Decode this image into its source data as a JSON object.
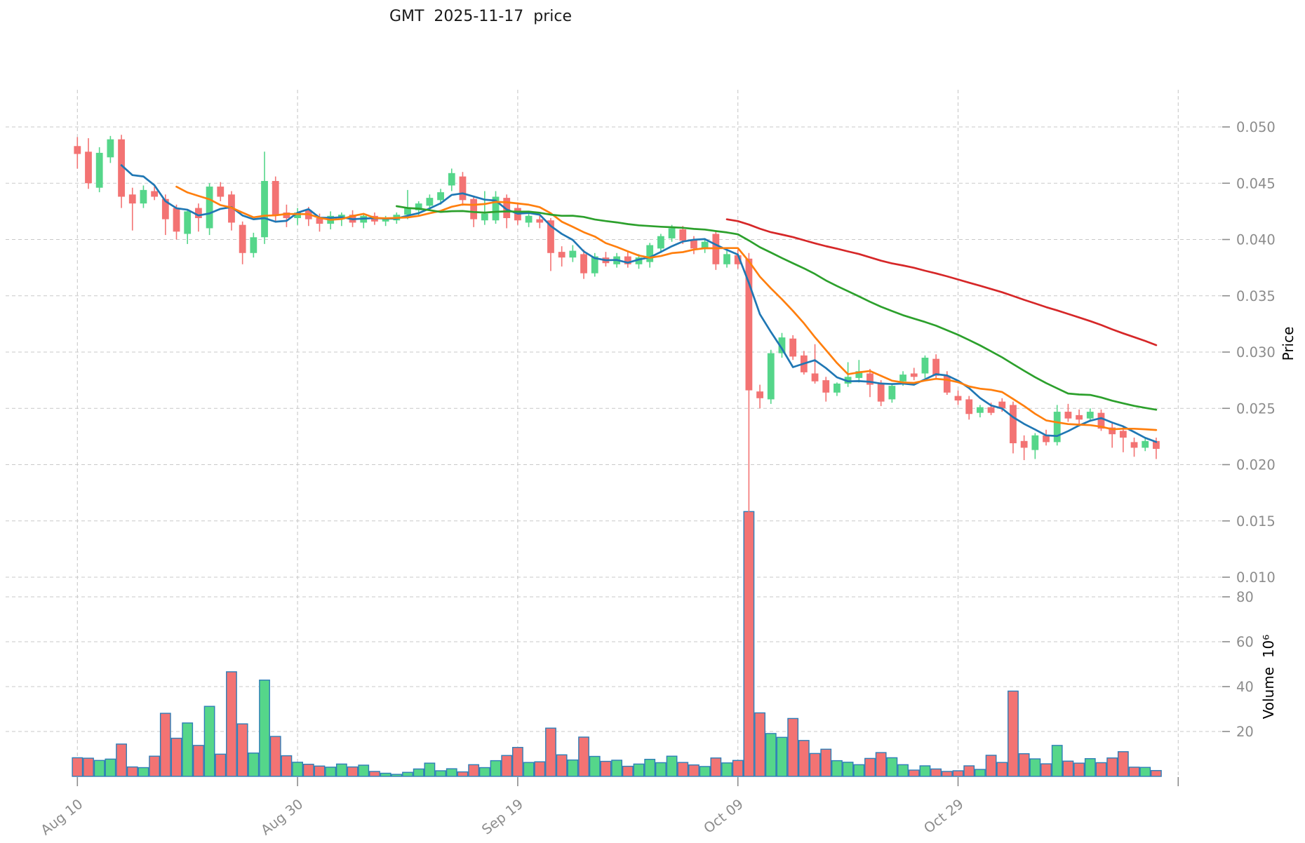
{
  "title": "GMT  2025-11-17  price",
  "axes": {
    "price_label": "Price",
    "volume_label": "Volume  10⁶",
    "price_ticks": [
      "0.050",
      "0.045",
      "0.040",
      "0.035",
      "0.030",
      "0.025",
      "0.020",
      "0.015",
      "0.010"
    ],
    "volume_ticks": [
      "80",
      "60",
      "40",
      "20"
    ],
    "x_ticks": [
      {
        "label": "Aug 10",
        "day": 0
      },
      {
        "label": "Aug 30",
        "day": 20
      },
      {
        "label": "Sep 19",
        "day": 40
      },
      {
        "label": "Oct 09",
        "day": 60
      },
      {
        "label": "Oct 29",
        "day": 80
      }
    ],
    "x_grid_extra_day": 100
  },
  "style": {
    "up_color": "#55d68a",
    "down_color": "#f37373",
    "volume_edge_color": "#2e7eb8",
    "grid_color": "#c9c9c9",
    "tick_text_color": "#8c8c8c",
    "axis_label_color": "#000000",
    "title_color": "#1a1a1a",
    "ma_colors": [
      "#1f77b4",
      "#ff7f0e",
      "#2ca02c",
      "#d62728"
    ]
  },
  "chart_data": {
    "type": "candlestick",
    "symbol": "GMT",
    "as_of_date": "2025-11-17",
    "title": "GMT  2025-11-17  price",
    "ylabel": "Price",
    "ylabel_volume": "Volume 10^6",
    "price_ylim": [
      0.0085,
      0.0515
    ],
    "volume_ylim": [
      0,
      130
    ],
    "grid": true,
    "legend_position": "none",
    "moving_averages": [
      {
        "period": 5,
        "color": "#1f77b4"
      },
      {
        "period": 10,
        "color": "#ff7f0e"
      },
      {
        "period": 30,
        "color": "#2ca02c"
      },
      {
        "period": 60,
        "color": "#d62728"
      }
    ],
    "dates": [
      "2025-08-10",
      "2025-08-11",
      "2025-08-12",
      "2025-08-13",
      "2025-08-14",
      "2025-08-15",
      "2025-08-16",
      "2025-08-17",
      "2025-08-18",
      "2025-08-19",
      "2025-08-20",
      "2025-08-21",
      "2025-08-22",
      "2025-08-23",
      "2025-08-24",
      "2025-08-25",
      "2025-08-26",
      "2025-08-27",
      "2025-08-28",
      "2025-08-29",
      "2025-08-30",
      "2025-08-31",
      "2025-09-01",
      "2025-09-02",
      "2025-09-03",
      "2025-09-04",
      "2025-09-05",
      "2025-09-06",
      "2025-09-07",
      "2025-09-08",
      "2025-09-09",
      "2025-09-10",
      "2025-09-11",
      "2025-09-12",
      "2025-09-13",
      "2025-09-14",
      "2025-09-15",
      "2025-09-16",
      "2025-09-17",
      "2025-09-18",
      "2025-09-19",
      "2025-09-20",
      "2025-09-21",
      "2025-09-22",
      "2025-09-23",
      "2025-09-24",
      "2025-09-25",
      "2025-09-26",
      "2025-09-27",
      "2025-09-28",
      "2025-09-29",
      "2025-09-30",
      "2025-10-01",
      "2025-10-02",
      "2025-10-03",
      "2025-10-04",
      "2025-10-05",
      "2025-10-06",
      "2025-10-07",
      "2025-10-08",
      "2025-10-09",
      "2025-10-10",
      "2025-10-11",
      "2025-10-12",
      "2025-10-13",
      "2025-10-14",
      "2025-10-15",
      "2025-10-16",
      "2025-10-17",
      "2025-10-18",
      "2025-10-19",
      "2025-10-20",
      "2025-10-21",
      "2025-10-22",
      "2025-10-23",
      "2025-10-24",
      "2025-10-25",
      "2025-10-26",
      "2025-10-27",
      "2025-10-28",
      "2025-10-29",
      "2025-10-30",
      "2025-10-31",
      "2025-11-01",
      "2025-11-02",
      "2025-11-03",
      "2025-11-04",
      "2025-11-05",
      "2025-11-06",
      "2025-11-07",
      "2025-11-08",
      "2025-11-09",
      "2025-11-10",
      "2025-11-11",
      "2025-11-12",
      "2025-11-13",
      "2025-11-14",
      "2025-11-15",
      "2025-11-16"
    ],
    "open": [
      0.0483,
      0.0478,
      0.0446,
      0.0473,
      0.0489,
      0.044,
      0.0432,
      0.0443,
      0.0436,
      0.0428,
      0.0405,
      0.0428,
      0.041,
      0.0447,
      0.044,
      0.0413,
      0.0388,
      0.0402,
      0.0452,
      0.0424,
      0.0419,
      0.0426,
      0.0419,
      0.0414,
      0.0418,
      0.0422,
      0.0415,
      0.0421,
      0.0416,
      0.0417,
      0.0422,
      0.0426,
      0.043,
      0.0435,
      0.0448,
      0.0456,
      0.0436,
      0.0417,
      0.0417,
      0.0437,
      0.0428,
      0.0415,
      0.0418,
      0.0417,
      0.0389,
      0.0384,
      0.0387,
      0.037,
      0.0384,
      0.0378,
      0.0385,
      0.0378,
      0.038,
      0.0392,
      0.0401,
      0.0409,
      0.04,
      0.0392,
      0.0405,
      0.0378,
      0.0386,
      0.0383,
      0.0265,
      0.0258,
      0.0299,
      0.0312,
      0.0297,
      0.0281,
      0.0275,
      0.0264,
      0.0272,
      0.0277,
      0.0281,
      0.0272,
      0.0258,
      0.0274,
      0.0281,
      0.0281,
      0.0294,
      0.0279,
      0.0261,
      0.0258,
      0.0246,
      0.0251,
      0.0256,
      0.0253,
      0.0221,
      0.0213,
      0.0226,
      0.022,
      0.0247,
      0.0244,
      0.0241,
      0.0246,
      0.0233,
      0.023,
      0.022,
      0.0215,
      0.0221
    ],
    "high": [
      0.0491,
      0.049,
      0.0482,
      0.0492,
      0.0493,
      0.0446,
      0.0448,
      0.0447,
      0.044,
      0.0431,
      0.0427,
      0.0432,
      0.045,
      0.0451,
      0.0443,
      0.0416,
      0.0406,
      0.0478,
      0.0456,
      0.0431,
      0.0428,
      0.0429,
      0.0423,
      0.0425,
      0.0424,
      0.0426,
      0.0423,
      0.0424,
      0.0421,
      0.0424,
      0.0444,
      0.0434,
      0.044,
      0.0445,
      0.0463,
      0.046,
      0.0439,
      0.0443,
      0.0443,
      0.044,
      0.0433,
      0.0424,
      0.0421,
      0.0419,
      0.0394,
      0.0395,
      0.0391,
      0.0388,
      0.0389,
      0.0388,
      0.0389,
      0.0387,
      0.0397,
      0.0405,
      0.0413,
      0.0412,
      0.0403,
      0.0401,
      0.0408,
      0.039,
      0.0391,
      0.0388,
      0.0271,
      0.0302,
      0.0317,
      0.0315,
      0.0301,
      0.0307,
      0.0278,
      0.0273,
      0.0291,
      0.0293,
      0.0285,
      0.0275,
      0.0272,
      0.0283,
      0.0286,
      0.0297,
      0.0298,
      0.0283,
      0.0266,
      0.0261,
      0.0253,
      0.0255,
      0.0259,
      0.0256,
      0.0226,
      0.0228,
      0.0231,
      0.0253,
      0.0254,
      0.0249,
      0.025,
      0.0249,
      0.0237,
      0.0234,
      0.0224,
      0.0223,
      0.0224
    ],
    "low": [
      0.0463,
      0.0445,
      0.0442,
      0.0468,
      0.0428,
      0.0408,
      0.0428,
      0.0435,
      0.0404,
      0.04,
      0.0396,
      0.0407,
      0.0404,
      0.0434,
      0.0408,
      0.0378,
      0.0384,
      0.0396,
      0.0415,
      0.0411,
      0.0413,
      0.0412,
      0.0407,
      0.0409,
      0.0412,
      0.0411,
      0.041,
      0.0413,
      0.0412,
      0.0414,
      0.0418,
      0.0421,
      0.0426,
      0.0431,
      0.0443,
      0.043,
      0.0411,
      0.0413,
      0.0414,
      0.041,
      0.0413,
      0.0411,
      0.041,
      0.0372,
      0.0376,
      0.038,
      0.0365,
      0.0367,
      0.0376,
      0.0375,
      0.0375,
      0.0374,
      0.0375,
      0.0388,
      0.0398,
      0.0396,
      0.0387,
      0.0388,
      0.0373,
      0.0375,
      0.0374,
      0.0113,
      0.025,
      0.0254,
      0.0295,
      0.0293,
      0.028,
      0.0272,
      0.0256,
      0.0261,
      0.0269,
      0.0273,
      0.026,
      0.0252,
      0.0255,
      0.027,
      0.0275,
      0.0277,
      0.0277,
      0.0262,
      0.0253,
      0.024,
      0.0242,
      0.0244,
      0.0247,
      0.021,
      0.0204,
      0.0205,
      0.0217,
      0.0217,
      0.0238,
      0.0236,
      0.0238,
      0.023,
      0.0215,
      0.0211,
      0.0207,
      0.0212,
      0.0205
    ],
    "close": [
      0.0476,
      0.045,
      0.0477,
      0.0489,
      0.0438,
      0.0432,
      0.0444,
      0.0438,
      0.0418,
      0.0407,
      0.0425,
      0.0419,
      0.0447,
      0.0438,
      0.0415,
      0.0388,
      0.0402,
      0.0452,
      0.0422,
      0.0419,
      0.0424,
      0.0418,
      0.0414,
      0.0421,
      0.0422,
      0.0415,
      0.0421,
      0.0416,
      0.0419,
      0.0422,
      0.0428,
      0.0432,
      0.0437,
      0.0442,
      0.0459,
      0.0435,
      0.0418,
      0.0423,
      0.0438,
      0.0419,
      0.0417,
      0.0421,
      0.0415,
      0.0388,
      0.0384,
      0.039,
      0.037,
      0.0385,
      0.0379,
      0.0385,
      0.0378,
      0.0384,
      0.0395,
      0.0403,
      0.041,
      0.0399,
      0.0392,
      0.0398,
      0.0378,
      0.0387,
      0.0378,
      0.0266,
      0.0259,
      0.0299,
      0.0313,
      0.0296,
      0.0282,
      0.0274,
      0.0264,
      0.0272,
      0.0278,
      0.0283,
      0.0271,
      0.0256,
      0.027,
      0.028,
      0.0278,
      0.0295,
      0.0279,
      0.0264,
      0.0257,
      0.0245,
      0.0251,
      0.0246,
      0.025,
      0.0219,
      0.0215,
      0.0226,
      0.022,
      0.0247,
      0.0241,
      0.024,
      0.0247,
      0.0232,
      0.0227,
      0.0224,
      0.0215,
      0.0221,
      0.0214
    ],
    "volume_millions": [
      8.3,
      8.1,
      7.1,
      7.7,
      14.4,
      4.2,
      3.9,
      9.0,
      28.1,
      17.0,
      23.8,
      13.8,
      31.2,
      9.9,
      46.6,
      23.4,
      10.4,
      42.9,
      17.8,
      9.2,
      6.3,
      5.4,
      4.6,
      4.1,
      5.5,
      4.2,
      5.0,
      2.2,
      1.4,
      0.9,
      1.8,
      3.3,
      5.9,
      2.5,
      3.4,
      2.0,
      5.2,
      3.9,
      7.0,
      9.3,
      12.9,
      6.2,
      6.5,
      21.5,
      9.6,
      7.3,
      17.5,
      8.9,
      6.7,
      7.2,
      4.5,
      5.5,
      7.6,
      6.1,
      9.0,
      6.2,
      5.1,
      4.4,
      8.2,
      6.0,
      7.1,
      118.0,
      28.3,
      19.1,
      17.4,
      25.8,
      16.0,
      10.2,
      12.1,
      7.0,
      6.3,
      5.2,
      8.0,
      10.6,
      8.3,
      5.2,
      2.8,
      4.7,
      3.3,
      2.2,
      2.5,
      4.7,
      3.1,
      9.4,
      6.2,
      38.0,
      10.1,
      7.8,
      5.6,
      13.8,
      6.8,
      5.9,
      7.9,
      6.1,
      8.2,
      11.0,
      4.1,
      4.0,
      2.6
    ]
  }
}
